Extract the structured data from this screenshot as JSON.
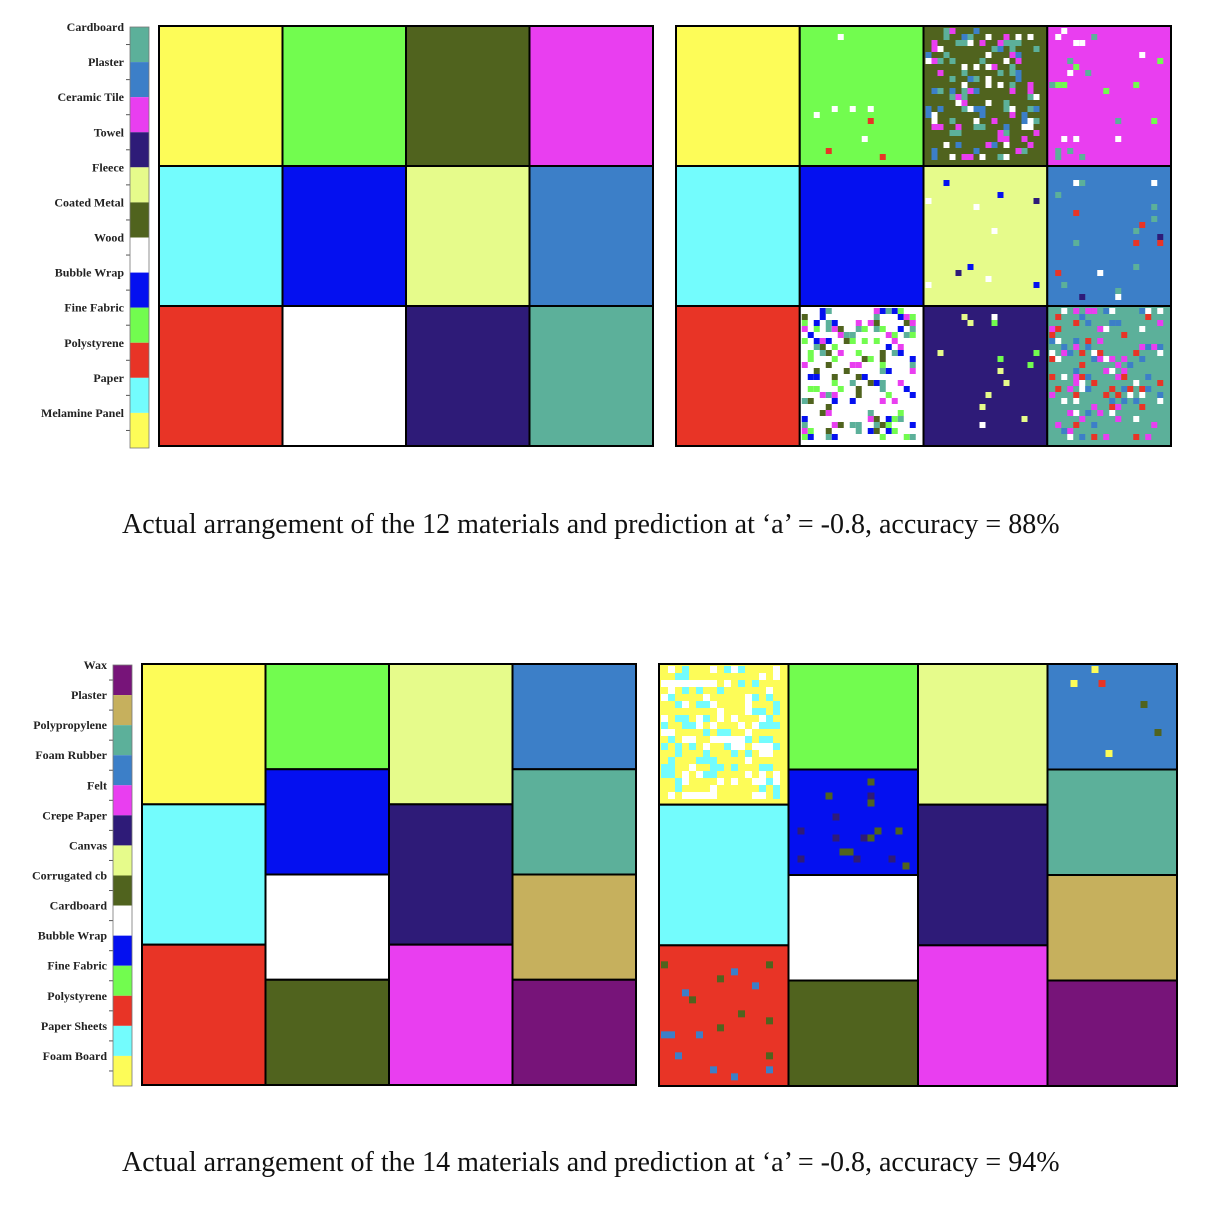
{
  "chart_data": [
    {
      "type": "heatmap",
      "legend": {
        "labels_top_to_bottom": [
          "Cardboard",
          "Plaster",
          "Ceramic Tile",
          "Towel",
          "Fleece",
          "Coated Metal",
          "Wood",
          "Bubble Wrap",
          "Fine Fabric",
          "Polystyrene",
          "Paper",
          "Melamine Panel"
        ],
        "colors_top_to_bottom": [
          "#5cb09a",
          "#3c7fc8",
          "#e93ef0",
          "#2e1b78",
          "#e6fb8b",
          "#50631e",
          "#ffffff",
          "#0410f0",
          "#72fc4f",
          "#e83426",
          "#73fcfd",
          "#fdfc58"
        ]
      },
      "actual_grid": [
        [
          "Melamine Panel",
          "Fine Fabric",
          "Coated Metal",
          "Ceramic Tile"
        ],
        [
          "Paper",
          "Bubble Wrap",
          "Fleece",
          "Plaster"
        ],
        [
          "Polystyrene",
          "Wood",
          "Towel",
          "Cardboard"
        ]
      ],
      "prediction_grid_dominant": [
        [
          "Melamine Panel",
          "Fine Fabric",
          "Coated Metal",
          "Ceramic Tile"
        ],
        [
          "Paper",
          "Bubble Wrap",
          "Fleece",
          "Plaster"
        ],
        [
          "Polystyrene",
          "Wood",
          "Towel",
          "Cardboard"
        ]
      ],
      "a": -0.8,
      "accuracy_percent": 88,
      "caption": "Actual arrangement of the 12 materials and prediction at ‘a’ = -0.8, accuracy = 88%"
    },
    {
      "type": "heatmap",
      "legend": {
        "labels_top_to_bottom": [
          "Wax",
          "Plaster",
          "Polypropylene",
          "Foam Rubber",
          "Felt",
          "Crepe Paper",
          "Canvas",
          "Corrugated cb",
          "Cardboard",
          "Bubble Wrap",
          "Fine Fabric",
          "Polystyrene",
          "Paper Sheets",
          "Foam Board"
        ],
        "colors_top_to_bottom": [
          "#771479",
          "#c6b05d",
          "#5cb09a",
          "#3c7fc8",
          "#e93ef0",
          "#2e1b78",
          "#e6fb8b",
          "#50631e",
          "#ffffff",
          "#0410f0",
          "#72fc4f",
          "#e83426",
          "#73fcfd",
          "#fdfc58"
        ]
      },
      "actual_columns": [
        [
          "Foam Board",
          "Paper Sheets",
          "Polystyrene"
        ],
        [
          "Fine Fabric",
          "Bubble Wrap",
          "Cardboard",
          "Corrugated cb"
        ],
        [
          "Canvas",
          "Crepe Paper",
          "Felt"
        ],
        [
          "Foam Rubber",
          "Polypropylene",
          "Plaster",
          "Wax"
        ]
      ],
      "prediction_columns_dominant": [
        [
          "Foam Board",
          "Paper Sheets",
          "Polystyrene"
        ],
        [
          "Fine Fabric",
          "Bubble Wrap",
          "Cardboard",
          "Corrugated cb"
        ],
        [
          "Canvas",
          "Crepe Paper",
          "Felt"
        ],
        [
          "Foam Rubber",
          "Polypropylene",
          "Plaster",
          "Wax"
        ]
      ],
      "a": -0.8,
      "accuracy_percent": 94,
      "caption": "Actual arrangement of the 14 materials and prediction at ‘a’ = -0.8, accuracy = 94%"
    }
  ]
}
